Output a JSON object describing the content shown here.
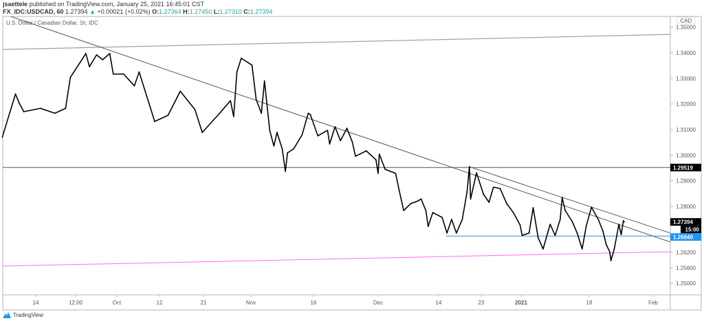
{
  "header": {
    "publisher": "jsaettele",
    "published_text": "published on TradingView.com, January 25, 2021 16:45:01 CST",
    "symbol": "FX_IDC:USDCAD, 60",
    "last": "1.27394",
    "change": "+0.00021 (+0.02%)",
    "open_label": "O:",
    "open": "1.27364",
    "high_label": "H:",
    "high": "1.27450",
    "low_label": "L:",
    "low": "1.27310",
    "close_label": "C:",
    "close": "1.27394",
    "up_arrow_icon": "triangle-up-icon"
  },
  "footer": {
    "brand": "TradingView",
    "logo_icon": "tradingview-logo-icon"
  },
  "colors": {
    "price_line": "#000000",
    "trendline": "#555555",
    "support_blue": "#2196f3",
    "support_pink": "#ff66ff",
    "up": "#26a69a",
    "tag_black": "#000000"
  },
  "chart_data": {
    "type": "line",
    "title": "U.S. Dollar / Canadian Dollar, 1h, IDC",
    "currency": "CAD",
    "ylim": [
      1.2465,
      1.3545
    ],
    "grid": false,
    "x_ticks": [
      "14",
      "12:00",
      "Oct",
      "12",
      "21",
      "Nov",
      "16",
      "Dec",
      "14",
      "23",
      "2021",
      "18",
      "Feb"
    ],
    "y_ticks": [
      "1.35000",
      "1.34000",
      "1.33000",
      "1.32000",
      "1.31000",
      "1.30000",
      "1.29000",
      "1.28000",
      "1.26200",
      "1.25600",
      "1.25000"
    ],
    "series": [
      {
        "points": [
          [
            "2020-09-07T00",
            1.3071
          ],
          [
            "2020-09-09T18",
            1.3239
          ],
          [
            "2020-09-10T12",
            1.3205
          ],
          [
            "2020-09-11T12",
            1.317
          ],
          [
            "2020-09-15T00",
            1.3183
          ],
          [
            "2020-09-18T00",
            1.3164
          ],
          [
            "2020-09-20T06",
            1.3183
          ],
          [
            "2020-09-21T06",
            1.3304
          ],
          [
            "2020-09-24T12",
            1.3397
          ],
          [
            "2020-09-25T06",
            1.3346
          ],
          [
            "2020-09-26T18",
            1.3392
          ],
          [
            "2020-09-28T00",
            1.3373
          ],
          [
            "2020-09-29T12",
            1.3397
          ],
          [
            "2020-09-30T06",
            1.3317
          ],
          [
            "2020-10-02T18",
            1.3317
          ],
          [
            "2020-10-05T12",
            1.3271
          ],
          [
            "2020-10-06T18",
            1.3325
          ],
          [
            "2020-10-10T18",
            1.3132
          ],
          [
            "2020-10-13T18",
            1.3156
          ],
          [
            "2020-10-16T06",
            1.325
          ],
          [
            "2020-10-19T06",
            1.3178
          ],
          [
            "2020-10-20T18",
            1.3089
          ],
          [
            "2020-10-24T18",
            1.3164
          ],
          [
            "2020-10-27T06",
            1.3213
          ],
          [
            "2020-10-28T00",
            1.3151
          ],
          [
            "2020-10-28T18",
            1.3325
          ],
          [
            "2020-10-29T18",
            1.3379
          ],
          [
            "2020-11-01T06",
            1.3352
          ],
          [
            "2020-11-02T06",
            1.3218
          ],
          [
            "2020-11-03T12",
            1.3164
          ],
          [
            "2020-11-04T06",
            1.329
          ],
          [
            "2020-11-05T12",
            1.3097
          ],
          [
            "2020-11-06T12",
            1.3036
          ],
          [
            "2020-11-07T06",
            1.3089
          ],
          [
            "2020-11-08T12",
            1.3025
          ],
          [
            "2020-11-09T06",
            1.2937
          ],
          [
            "2020-11-09T18",
            1.3009
          ],
          [
            "2020-11-11T06",
            1.3025
          ],
          [
            "2020-11-13T06",
            1.3079
          ],
          [
            "2020-11-14T18",
            1.3164
          ],
          [
            "2020-11-15T06",
            1.3159
          ],
          [
            "2020-11-17T00",
            1.3076
          ],
          [
            "2020-11-19T06",
            1.3097
          ],
          [
            "2020-11-19T18",
            1.3044
          ],
          [
            "2020-11-21T00",
            1.3111
          ],
          [
            "2020-11-22T06",
            1.3057
          ],
          [
            "2020-11-23T18",
            1.3105
          ],
          [
            "2020-11-25T00",
            1.3052
          ],
          [
            "2020-11-25T18",
            1.2996
          ],
          [
            "2020-11-28T06",
            1.3017
          ],
          [
            "2020-11-30T12",
            1.2982
          ],
          [
            "2020-12-01T00",
            1.2929
          ],
          [
            "2020-12-01T06",
            1.3004
          ],
          [
            "2020-12-02T12",
            1.2945
          ],
          [
            "2020-12-04T18",
            1.2929
          ],
          [
            "2020-12-05T12",
            1.2864
          ],
          [
            "2020-12-06T12",
            1.2784
          ],
          [
            "2020-12-08T00",
            1.2811
          ],
          [
            "2020-12-09T12",
            1.2821
          ],
          [
            "2020-12-10T06",
            1.2829
          ],
          [
            "2020-12-11T06",
            1.2784
          ],
          [
            "2020-12-11T18",
            1.2722
          ],
          [
            "2020-12-12T18",
            1.2776
          ],
          [
            "2020-12-14T18",
            1.2757
          ],
          [
            "2020-12-15T18",
            1.2696
          ],
          [
            "2020-12-16T18",
            1.2749
          ],
          [
            "2020-12-17T18",
            1.2696
          ],
          [
            "2020-12-19T00",
            1.2749
          ],
          [
            "2020-12-20T00",
            1.2856
          ],
          [
            "2020-12-20T12",
            1.2955
          ],
          [
            "2020-12-20T18",
            1.2829
          ],
          [
            "2020-12-22T00",
            1.2931
          ],
          [
            "2020-12-23T12",
            1.2848
          ],
          [
            "2020-12-24T18",
            1.2816
          ],
          [
            "2020-12-25T18",
            1.2875
          ],
          [
            "2020-12-27T06",
            1.287
          ],
          [
            "2020-12-28T18",
            1.2811
          ],
          [
            "2020-12-30T06",
            1.2776
          ],
          [
            "2020-12-31T18",
            1.2728
          ],
          [
            "2021-01-01T06",
            1.2687
          ],
          [
            "2021-01-03T00",
            1.2696
          ],
          [
            "2021-01-04T00",
            1.2795
          ],
          [
            "2021-01-05T06",
            1.2677
          ],
          [
            "2021-01-06T12",
            1.2634
          ],
          [
            "2021-01-08T06",
            1.273
          ],
          [
            "2021-01-09T12",
            1.2687
          ],
          [
            "2021-01-10T18",
            1.2749
          ],
          [
            "2021-01-11T06",
            1.2835
          ],
          [
            "2021-01-12T00",
            1.2784
          ],
          [
            "2021-01-13T18",
            1.2741
          ],
          [
            "2021-01-15T00",
            1.2696
          ],
          [
            "2021-01-16T06",
            1.2634
          ],
          [
            "2021-01-17T06",
            1.2722
          ],
          [
            "2021-01-18T12",
            1.2797
          ],
          [
            "2021-01-20T00",
            1.2749
          ],
          [
            "2021-01-21T00",
            1.2704
          ],
          [
            "2021-01-21T18",
            1.265
          ],
          [
            "2021-01-22T12",
            1.2623
          ],
          [
            "2021-01-22T18",
            1.2588
          ],
          [
            "2021-01-23T12",
            1.2634
          ],
          [
            "2021-01-24T12",
            1.273
          ],
          [
            "2021-01-25T00",
            1.269
          ],
          [
            "2021-01-25T12",
            1.2744
          ],
          [
            "2021-01-25T16",
            1.27394
          ]
        ]
      }
    ],
    "drawings": [
      {
        "kind": "trendline",
        "color": "#9e9e9e",
        "from": [
          "2020-09-07T00",
          1.3413
        ],
        "to": [
          "2021-02-04T18",
          1.3472
        ]
      },
      {
        "kind": "trendline",
        "color": "#555555",
        "from": [
          "2020-09-08T18",
          1.3542
        ],
        "to": [
          "2021-02-04T18",
          1.2661
        ]
      },
      {
        "kind": "trendline",
        "color": "#555555",
        "from": [
          "2020-12-20T12",
          1.2955
        ],
        "to": [
          "2021-02-04T18",
          1.2696
        ]
      },
      {
        "kind": "horizontal",
        "color": "#555555",
        "price": 1.29519
      },
      {
        "kind": "ray",
        "color": "#2196f3",
        "from": [
          "2020-12-15T12",
          1.2684
        ],
        "to": [
          "2021-02-04T18",
          1.2684
        ]
      },
      {
        "kind": "trendline",
        "color": "#ff66ff",
        "from": [
          "2020-09-07T00",
          1.2567
        ],
        "to": [
          "2021-02-04T18",
          1.2623
        ]
      }
    ],
    "price_tags": [
      {
        "label": "1.29519",
        "price": 1.29519,
        "bg": "#000000"
      },
      {
        "label": "1.27394",
        "price": 1.27394,
        "bg": "#000000"
      },
      {
        "label": "15:00",
        "price": 1.2712,
        "bg": "#000000"
      },
      {
        "label": "1.26840",
        "price": 1.2684,
        "bg": "#2196f3"
      }
    ]
  }
}
